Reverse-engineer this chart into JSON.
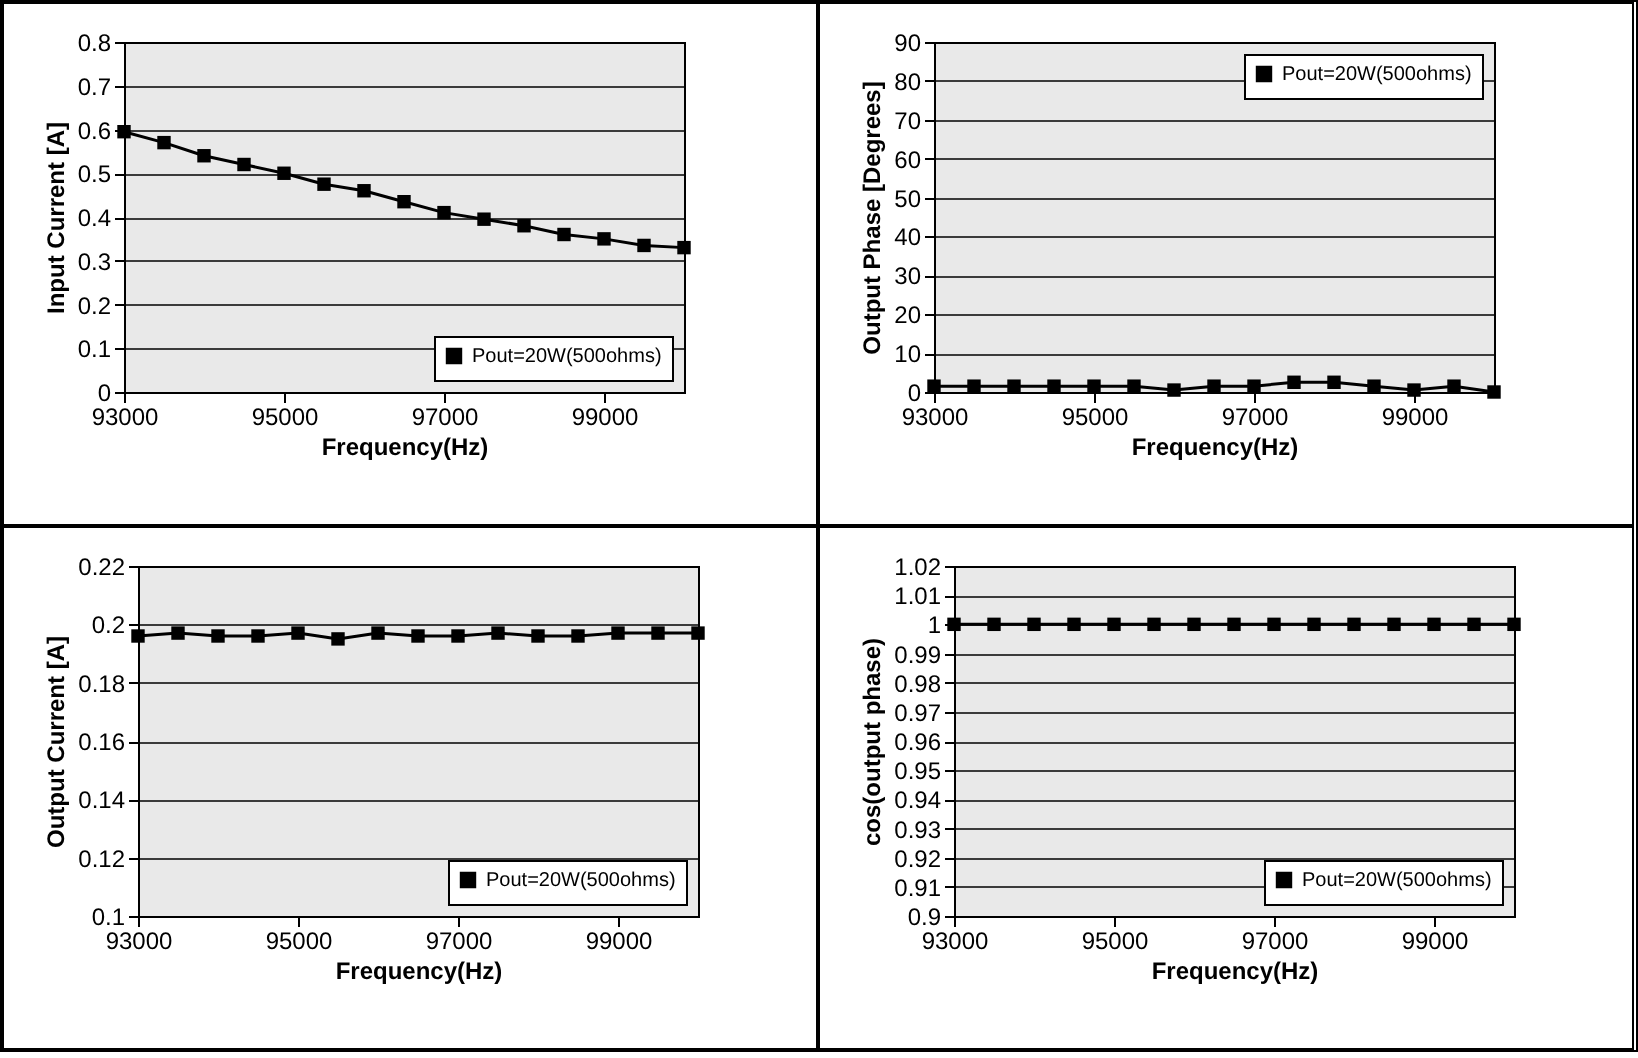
{
  "chart_data": [
    {
      "type": "line",
      "xlabel": "Frequency(Hz)",
      "ylabel": "Input Current [A]",
      "x": [
        93000,
        93500,
        94000,
        94500,
        95000,
        95500,
        96000,
        96500,
        97000,
        97500,
        98000,
        98500,
        99000,
        99500,
        100000
      ],
      "series": [
        {
          "name": "Pout=20W(500ohms)",
          "color": "#000000",
          "values": [
            0.595,
            0.57,
            0.54,
            0.52,
            0.5,
            0.475,
            0.46,
            0.435,
            0.41,
            0.395,
            0.38,
            0.36,
            0.35,
            0.335,
            0.33
          ]
        }
      ],
      "xlim": [
        93000,
        100000
      ],
      "xticks": [
        93000,
        95000,
        97000,
        99000
      ],
      "ylim": [
        0,
        0.8
      ],
      "yticks": [
        0,
        0.1,
        0.2,
        0.3,
        0.4,
        0.5,
        0.6,
        0.7,
        0.8
      ],
      "grid": "y",
      "legend": "bottom right",
      "marker": "square",
      "line_style": "solid"
    },
    {
      "type": "line",
      "xlabel": "Frequency(Hz)",
      "ylabel": "Output Phase [Degrees]",
      "x": [
        93000,
        93500,
        94000,
        94500,
        95000,
        95500,
        96000,
        96500,
        97000,
        97500,
        98000,
        98500,
        99000,
        99500,
        100000
      ],
      "series": [
        {
          "name": "Pout=20W(500ohms)",
          "color": "#000000",
          "values": [
            1.5,
            1.5,
            1.5,
            1.5,
            1.5,
            1.5,
            0.5,
            1.5,
            1.5,
            2.5,
            2.5,
            1.5,
            0.5,
            1.5,
            0
          ]
        }
      ],
      "xlim": [
        93000,
        100000
      ],
      "xticks": [
        93000,
        95000,
        97000,
        99000
      ],
      "ylim": [
        0,
        90
      ],
      "yticks": [
        0,
        10,
        20,
        30,
        40,
        50,
        60,
        70,
        80,
        90
      ],
      "grid": "y",
      "legend": "top right",
      "marker": "square",
      "line_style": "solid"
    },
    {
      "type": "line",
      "xlabel": "Frequency(Hz)",
      "ylabel": "Output Current [A]",
      "x": [
        93000,
        93500,
        94000,
        94500,
        95000,
        95500,
        96000,
        96500,
        97000,
        97500,
        98000,
        98500,
        99000,
        99500,
        100000
      ],
      "series": [
        {
          "name": "Pout=20W(500ohms)",
          "color": "#000000",
          "values": [
            0.196,
            0.197,
            0.196,
            0.196,
            0.197,
            0.195,
            0.197,
            0.196,
            0.196,
            0.197,
            0.196,
            0.196,
            0.197,
            0.197,
            0.197
          ]
        }
      ],
      "xlim": [
        93000,
        100000
      ],
      "xticks": [
        93000,
        95000,
        97000,
        99000
      ],
      "ylim": [
        0.1,
        0.22
      ],
      "yticks": [
        0.1,
        0.12,
        0.14,
        0.16,
        0.18,
        0.2,
        0.22
      ],
      "grid": "y",
      "legend": "bottom right",
      "marker": "square",
      "line_style": "solid"
    },
    {
      "type": "line",
      "xlabel": "Frequency(Hz)",
      "ylabel": "cos(output phase)",
      "x": [
        93000,
        93500,
        94000,
        94500,
        95000,
        95500,
        96000,
        96500,
        97000,
        97500,
        98000,
        98500,
        99000,
        99500,
        100000
      ],
      "series": [
        {
          "name": "Pout=20W(500ohms)",
          "color": "#000000",
          "values": [
            1,
            1,
            1,
            1,
            1,
            1,
            1,
            1,
            1,
            1,
            1,
            1,
            1,
            1,
            1
          ]
        }
      ],
      "xlim": [
        93000,
        100000
      ],
      "xticks": [
        93000,
        95000,
        97000,
        99000
      ],
      "ylim": [
        0.9,
        1.02
      ],
      "yticks": [
        0.9,
        0.91,
        0.92,
        0.93,
        0.94,
        0.95,
        0.96,
        0.97,
        0.98,
        0.99,
        1,
        1.01,
        1.02
      ],
      "grid": "y",
      "legend": "bottom right",
      "marker": "square",
      "line_style": "solid"
    }
  ]
}
